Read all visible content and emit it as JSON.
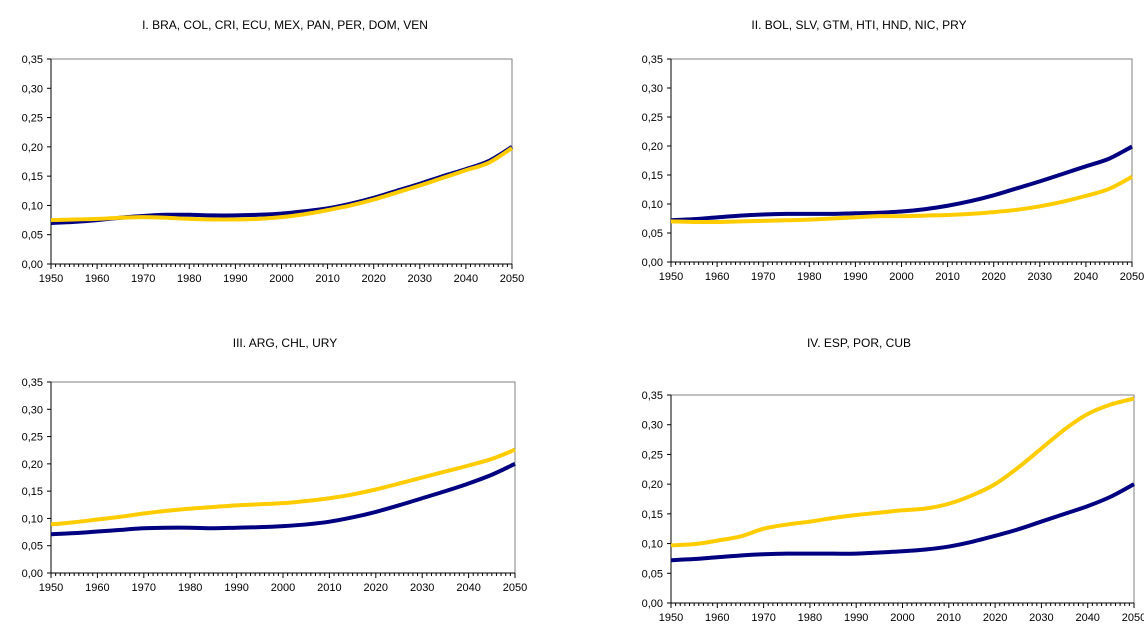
{
  "chart_data": [
    {
      "type": "line",
      "title": "I. BRA, COL, CRI, ECU, MEX, PAN, PER, DOM, VEN",
      "x": [
        1950,
        1955,
        1960,
        1965,
        1970,
        1975,
        1980,
        1985,
        1990,
        1995,
        2000,
        2005,
        2010,
        2015,
        2020,
        2025,
        2030,
        2035,
        2040,
        2045,
        2050
      ],
      "ylim": [
        0,
        0.35
      ],
      "yticks": [
        "0,00",
        "0,05",
        "0,10",
        "0,15",
        "0,20",
        "0,25",
        "0,30",
        "0,35"
      ],
      "xticks": [
        "1950",
        "1960",
        "1970",
        "1980",
        "1990",
        "2000",
        "2010",
        "2020",
        "2030",
        "2040",
        "2050"
      ],
      "grid": "none",
      "series": [
        {
          "color": "#000080",
          "values": [
            0.07,
            0.072,
            0.075,
            0.079,
            0.082,
            0.084,
            0.084,
            0.083,
            0.083,
            0.084,
            0.086,
            0.09,
            0.095,
            0.103,
            0.113,
            0.125,
            0.137,
            0.15,
            0.162,
            0.176,
            0.2
          ]
        },
        {
          "color": "#FFCC00",
          "values": [
            0.075,
            0.076,
            0.077,
            0.079,
            0.08,
            0.079,
            0.077,
            0.076,
            0.076,
            0.077,
            0.08,
            0.085,
            0.092,
            0.1,
            0.11,
            0.122,
            0.134,
            0.147,
            0.16,
            0.173,
            0.198
          ]
        }
      ]
    },
    {
      "type": "line",
      "title": "II. BOL, SLV, GTM, HTI, HND, NIC, PRY",
      "x": [
        1950,
        1955,
        1960,
        1965,
        1970,
        1975,
        1980,
        1985,
        1990,
        1995,
        2000,
        2005,
        2010,
        2015,
        2020,
        2025,
        2030,
        2035,
        2040,
        2045,
        2050
      ],
      "ylim": [
        0,
        0.35
      ],
      "yticks": [
        "0,00",
        "0,05",
        "0,10",
        "0,15",
        "0,20",
        "0,25",
        "0,30",
        "0,35"
      ],
      "xticks": [
        "1950",
        "1960",
        "1970",
        "1980",
        "1990",
        "2000",
        "2010",
        "2020",
        "2030",
        "2040",
        "2050"
      ],
      "grid": "none",
      "series": [
        {
          "color": "#000080",
          "values": [
            0.072,
            0.074,
            0.077,
            0.08,
            0.082,
            0.083,
            0.083,
            0.083,
            0.084,
            0.085,
            0.087,
            0.091,
            0.097,
            0.105,
            0.115,
            0.127,
            0.139,
            0.152,
            0.165,
            0.178,
            0.199
          ]
        },
        {
          "color": "#FFCC00",
          "values": [
            0.07,
            0.069,
            0.069,
            0.07,
            0.071,
            0.072,
            0.073,
            0.075,
            0.077,
            0.079,
            0.079,
            0.08,
            0.081,
            0.083,
            0.086,
            0.09,
            0.096,
            0.104,
            0.114,
            0.126,
            0.147
          ]
        }
      ]
    },
    {
      "type": "line",
      "title": "III. ARG, CHL, URY",
      "x": [
        1950,
        1955,
        1960,
        1965,
        1970,
        1975,
        1980,
        1985,
        1990,
        1995,
        2000,
        2005,
        2010,
        2015,
        2020,
        2025,
        2030,
        2035,
        2040,
        2045,
        2050
      ],
      "ylim": [
        0,
        0.35
      ],
      "yticks": [
        "0,00",
        "0,05",
        "0,10",
        "0,15",
        "0,20",
        "0,25",
        "0,30",
        "0,35"
      ],
      "xticks": [
        "1950",
        "1960",
        "1970",
        "1980",
        "1990",
        "2000",
        "2010",
        "2020",
        "2030",
        "2040",
        "2050"
      ],
      "grid": "none",
      "series": [
        {
          "color": "#000080",
          "values": [
            0.071,
            0.073,
            0.076,
            0.079,
            0.082,
            0.083,
            0.083,
            0.082,
            0.083,
            0.084,
            0.086,
            0.089,
            0.094,
            0.102,
            0.112,
            0.124,
            0.137,
            0.15,
            0.164,
            0.18,
            0.2
          ]
        },
        {
          "color": "#FFCC00",
          "values": [
            0.089,
            0.093,
            0.098,
            0.103,
            0.109,
            0.114,
            0.118,
            0.121,
            0.124,
            0.126,
            0.128,
            0.132,
            0.137,
            0.144,
            0.153,
            0.164,
            0.175,
            0.186,
            0.197,
            0.209,
            0.226
          ]
        }
      ]
    },
    {
      "type": "line",
      "title": "IV. ESP, POR, CUB",
      "x": [
        1950,
        1955,
        1960,
        1965,
        1970,
        1975,
        1980,
        1985,
        1990,
        1995,
        2000,
        2005,
        2010,
        2015,
        2020,
        2025,
        2030,
        2035,
        2040,
        2045,
        2050
      ],
      "ylim": [
        0,
        0.35
      ],
      "yticks": [
        "0,00",
        "0,05",
        "0,10",
        "0,15",
        "0,20",
        "0,25",
        "0,30",
        "0,35"
      ],
      "xticks": [
        "1950",
        "1960",
        "1970",
        "1980",
        "1990",
        "2000",
        "2010",
        "2020",
        "2030",
        "2040",
        "2050"
      ],
      "grid": "none",
      "series": [
        {
          "color": "#000080",
          "values": [
            0.072,
            0.074,
            0.077,
            0.08,
            0.082,
            0.083,
            0.083,
            0.083,
            0.083,
            0.085,
            0.087,
            0.09,
            0.095,
            0.103,
            0.113,
            0.124,
            0.137,
            0.15,
            0.163,
            0.179,
            0.2
          ]
        },
        {
          "color": "#FFCC00",
          "values": [
            0.097,
            0.099,
            0.105,
            0.112,
            0.125,
            0.132,
            0.137,
            0.143,
            0.148,
            0.152,
            0.156,
            0.159,
            0.167,
            0.181,
            0.2,
            0.228,
            0.26,
            0.292,
            0.318,
            0.334,
            0.344
          ]
        }
      ]
    }
  ]
}
